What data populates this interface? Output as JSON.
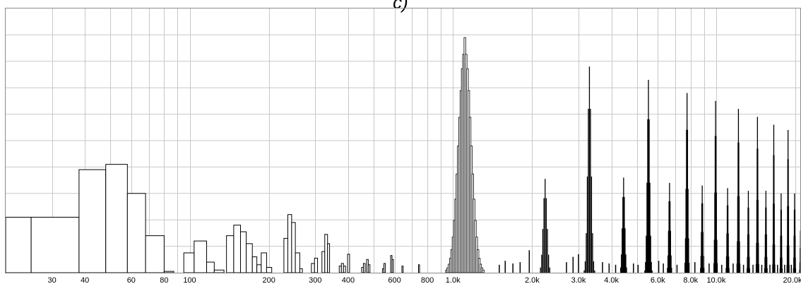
{
  "title": "c)",
  "chart_data": {
    "type": "bar",
    "title": "c)",
    "xlabel": "",
    "ylabel": "",
    "x_scale": "log",
    "xlim": [
      20,
      21000
    ],
    "ylim": [
      0,
      10
    ],
    "grid": true,
    "x_tick_labels": [
      {
        "f": 30,
        "label": "30"
      },
      {
        "f": 40,
        "label": "40"
      },
      {
        "f": 60,
        "label": "60"
      },
      {
        "f": 80,
        "label": "80"
      },
      {
        "f": 100,
        "label": "100"
      },
      {
        "f": 200,
        "label": "200"
      },
      {
        "f": 300,
        "label": "300"
      },
      {
        "f": 400,
        "label": "400"
      },
      {
        "f": 600,
        "label": "600"
      },
      {
        "f": 800,
        "label": "800"
      },
      {
        "f": 1000,
        "label": "1.0k"
      },
      {
        "f": 2000,
        "label": "2.0k"
      },
      {
        "f": 3000,
        "label": "3.0k"
      },
      {
        "f": 4000,
        "label": "4.0k"
      },
      {
        "f": 6000,
        "label": "6.0k"
      },
      {
        "f": 8000,
        "label": "8.0k"
      },
      {
        "f": 10000,
        "label": "10.0k"
      },
      {
        "f": 20000,
        "label": "20.0k"
      }
    ],
    "low_bars": [
      {
        "f0": 20,
        "f1": 25,
        "v": 2.1
      },
      {
        "f0": 25,
        "f1": 38,
        "v": 2.1
      },
      {
        "f0": 38,
        "f1": 48,
        "v": 3.9
      },
      {
        "f0": 48,
        "f1": 58,
        "v": 4.1
      },
      {
        "f0": 58,
        "f1": 68,
        "v": 3.0
      },
      {
        "f0": 68,
        "f1": 80,
        "v": 1.4
      },
      {
        "f0": 80,
        "f1": 87,
        "v": 0.05
      },
      {
        "f0": 95,
        "f1": 104,
        "v": 0.75
      },
      {
        "f0": 104,
        "f1": 116,
        "v": 1.2
      },
      {
        "f0": 116,
        "f1": 124,
        "v": 0.4
      },
      {
        "f0": 124,
        "f1": 135,
        "v": 0.1
      },
      {
        "f0": 138,
        "f1": 147,
        "v": 1.4
      },
      {
        "f0": 147,
        "f1": 156,
        "v": 1.8
      },
      {
        "f0": 156,
        "f1": 164,
        "v": 1.55
      },
      {
        "f0": 164,
        "f1": 173,
        "v": 1.1
      },
      {
        "f0": 173,
        "f1": 180,
        "v": 0.6
      },
      {
        "f0": 180,
        "f1": 187,
        "v": 0.3
      },
      {
        "f0": 187,
        "f1": 196,
        "v": 0.75
      },
      {
        "f0": 196,
        "f1": 205,
        "v": 0.2
      },
      {
        "f0": 228,
        "f1": 236,
        "v": 1.3
      },
      {
        "f0": 236,
        "f1": 244,
        "v": 2.2
      },
      {
        "f0": 244,
        "f1": 252,
        "v": 1.9
      },
      {
        "f0": 252,
        "f1": 262,
        "v": 0.75
      },
      {
        "f0": 262,
        "f1": 268,
        "v": 0.15
      },
      {
        "f0": 290,
        "f1": 298,
        "v": 0.35
      },
      {
        "f0": 298,
        "f1": 306,
        "v": 0.55
      },
      {
        "f0": 318,
        "f1": 326,
        "v": 0.8
      },
      {
        "f0": 326,
        "f1": 334,
        "v": 1.45
      },
      {
        "f0": 334,
        "f1": 340,
        "v": 1.1
      },
      {
        "f0": 370,
        "f1": 377,
        "v": 0.25
      },
      {
        "f0": 377,
        "f1": 384,
        "v": 0.35
      },
      {
        "f0": 384,
        "f1": 391,
        "v": 0.25
      },
      {
        "f0": 398,
        "f1": 405,
        "v": 0.7
      },
      {
        "f0": 450,
        "f1": 457,
        "v": 0.2
      },
      {
        "f0": 457,
        "f1": 464,
        "v": 0.35
      },
      {
        "f0": 470,
        "f1": 477,
        "v": 0.5
      },
      {
        "f0": 477,
        "f1": 484,
        "v": 0.3
      },
      {
        "f0": 540,
        "f1": 547,
        "v": 0.15
      },
      {
        "f0": 547,
        "f1": 554,
        "v": 0.35
      },
      {
        "f0": 580,
        "f1": 587,
        "v": 0.65
      },
      {
        "f0": 587,
        "f1": 594,
        "v": 0.5
      },
      {
        "f0": 640,
        "f1": 647,
        "v": 0.25
      },
      {
        "f0": 740,
        "f1": 747,
        "v": 0.3
      }
    ],
    "peaks": [
      {
        "f": 1110,
        "v": 8.9,
        "width": 0.07
      },
      {
        "f": 2240,
        "v": 3.55,
        "width": 0.022
      },
      {
        "f": 3300,
        "v": 7.8,
        "width": 0.02
      },
      {
        "f": 4450,
        "v": 3.6,
        "width": 0.014
      },
      {
        "f": 5530,
        "v": 7.3,
        "width": 0.014
      },
      {
        "f": 6650,
        "v": 3.4,
        "width": 0.01
      },
      {
        "f": 7750,
        "v": 6.8,
        "width": 0.01
      },
      {
        "f": 8850,
        "v": 3.3,
        "width": 0.008
      },
      {
        "f": 9950,
        "v": 6.5,
        "width": 0.008
      },
      {
        "f": 11050,
        "v": 3.2,
        "width": 0.007
      },
      {
        "f": 12150,
        "v": 6.2,
        "width": 0.007
      },
      {
        "f": 13250,
        "v": 3.1,
        "width": 0.006
      },
      {
        "f": 14350,
        "v": 5.9,
        "width": 0.006
      },
      {
        "f": 15450,
        "v": 3.1,
        "width": 0.006
      },
      {
        "f": 16550,
        "v": 5.6,
        "width": 0.005
      },
      {
        "f": 17650,
        "v": 3.0,
        "width": 0.005
      },
      {
        "f": 18750,
        "v": 5.4,
        "width": 0.005
      },
      {
        "f": 19850,
        "v": 3.0,
        "width": 0.005
      },
      {
        "f": 20950,
        "v": 2.0,
        "width": 0.005
      }
    ],
    "small_spikes": [
      {
        "f": 1500,
        "v": 0.3
      },
      {
        "f": 1580,
        "v": 0.45
      },
      {
        "f": 1690,
        "v": 0.35
      },
      {
        "f": 1800,
        "v": 0.4
      },
      {
        "f": 1950,
        "v": 0.85
      },
      {
        "f": 2700,
        "v": 0.4
      },
      {
        "f": 2860,
        "v": 0.6
      },
      {
        "f": 3000,
        "v": 0.7
      },
      {
        "f": 3700,
        "v": 0.4
      },
      {
        "f": 3920,
        "v": 0.35
      },
      {
        "f": 4150,
        "v": 0.3
      },
      {
        "f": 4850,
        "v": 0.35
      },
      {
        "f": 5050,
        "v": 0.3
      },
      {
        "f": 6050,
        "v": 0.45
      },
      {
        "f": 6300,
        "v": 0.35
      },
      {
        "f": 7100,
        "v": 0.3
      },
      {
        "f": 8300,
        "v": 0.4
      },
      {
        "f": 9400,
        "v": 0.35
      },
      {
        "f": 10500,
        "v": 0.3
      },
      {
        "f": 11600,
        "v": 0.35
      },
      {
        "f": 12700,
        "v": 0.3
      },
      {
        "f": 13800,
        "v": 0.3
      },
      {
        "f": 14900,
        "v": 0.3
      },
      {
        "f": 16000,
        "v": 0.3
      },
      {
        "f": 17100,
        "v": 0.3
      },
      {
        "f": 18200,
        "v": 0.3
      },
      {
        "f": 19300,
        "v": 0.3
      }
    ]
  }
}
